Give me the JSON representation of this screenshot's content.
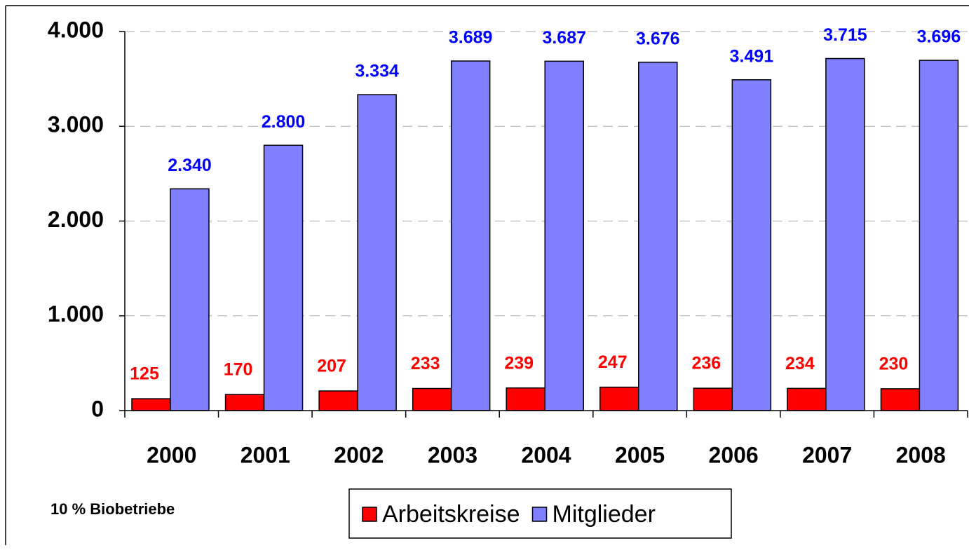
{
  "chart_data": {
    "type": "bar",
    "categories": [
      "2000",
      "2001",
      "2002",
      "2003",
      "2004",
      "2005",
      "2006",
      "2007",
      "2008"
    ],
    "series": [
      {
        "name": "Arbeitskreise",
        "color": "#ff0000",
        "label_color": "#ff0000",
        "values": [
          125,
          170,
          207,
          233,
          239,
          247,
          236,
          234,
          230
        ]
      },
      {
        "name": "Mitglieder",
        "color": "#8080ff",
        "label_color": "#0000ff",
        "values": [
          2340,
          2800,
          3334,
          3689,
          3687,
          3676,
          3491,
          3715,
          3696
        ],
        "value_labels": [
          "2.340",
          "2.800",
          "3.334",
          "3.689",
          "3.687",
          "3.676",
          "3.491",
          "3.715",
          "3.696"
        ]
      }
    ],
    "ylim": [
      0,
      4000
    ],
    "yticks": [
      0,
      {
        "value": 1000,
        "label": "1.000"
      },
      {
        "value": 2000,
        "label": "2.000"
      },
      {
        "value": 3000,
        "label": "3.000"
      },
      {
        "value": 4000,
        "label": "4.000"
      }
    ],
    "grid": true,
    "annotation": "10 % Biobetriebe",
    "legend": "bottom"
  }
}
